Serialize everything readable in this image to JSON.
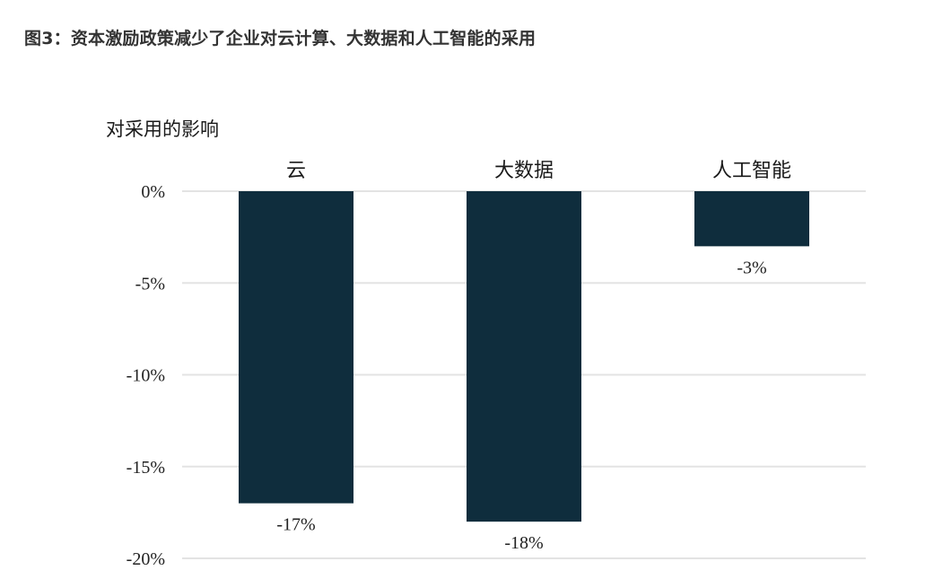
{
  "figure_title": "图3：资本激励政策减少了企业对云计算、大数据和人工智能的采用",
  "colors": {
    "bar": "#0f2d3d",
    "grid": "#e3e3e3"
  },
  "chart_data": {
    "type": "bar",
    "ylabel": "对采用的影响",
    "categories": [
      "云",
      "大数据",
      "人工智能"
    ],
    "values": [
      -17,
      -18,
      -3
    ],
    "data_labels": [
      "-17%",
      "-18%",
      "-3%"
    ],
    "ylim": [
      -20,
      0
    ],
    "yticks": [
      0,
      -5,
      -10,
      -15,
      -20
    ],
    "ytick_labels": [
      "0%",
      "-5%",
      "-10%",
      "-15%",
      "-20%"
    ],
    "grid": true,
    "category_labels_position": "top"
  }
}
